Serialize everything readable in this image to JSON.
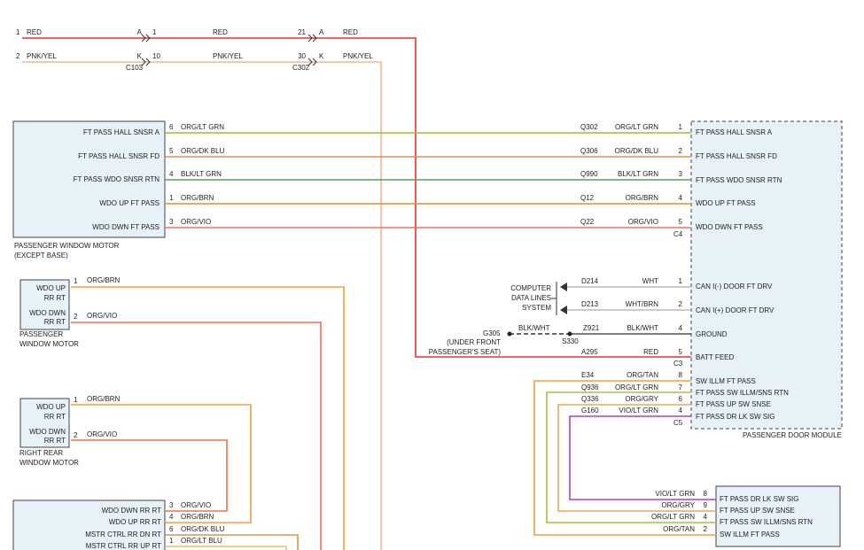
{
  "top": {
    "row1": [
      "1",
      "RED",
      "A",
      "1",
      "RED",
      "21",
      "A",
      "RED"
    ],
    "row2": [
      "2",
      "PNK/YEL",
      "K",
      "10",
      "PNK/YEL",
      "30",
      "K",
      "PNK/YEL"
    ],
    "connectors": [
      "C103",
      "C302"
    ]
  },
  "passenger_window_motor": {
    "terminals": [
      "FT PASS HALL SNSR A",
      "FT PASS HALL SNSR FD",
      "FT PASS WDO SNSR RTN",
      "WDO UP FT PASS",
      "WDO DWN FT PASS"
    ],
    "pins": [
      "6",
      "5",
      "4",
      "1",
      "3"
    ],
    "wire_colors": [
      "ORG/LT GRN",
      "ORG/DK BLU",
      "BLK/LT GRN",
      "ORG/BRN",
      "ORG/VIO"
    ],
    "caption": [
      "PASSENGER WINDOW MOTOR",
      "(EXCEPT BASE)"
    ]
  },
  "c4": {
    "circuits": [
      "Q302",
      "Q306",
      "Q990",
      "Q12",
      "Q22"
    ],
    "wire_colors": [
      "ORG/LT GRN",
      "ORG/DK BLU",
      "BLK/LT GRN",
      "ORG/BRN",
      "ORG/VIO"
    ],
    "pins": [
      "1",
      "2",
      "3",
      "4",
      "5"
    ],
    "label": "C4"
  },
  "door_module": {
    "terminals": [
      "FT PASS HALL SNSR A",
      "FT PASS HALL SNSR FD",
      "FT PASS WDO SNSR RTN",
      "WDO UP FT PASS",
      "WDO DWN FT PASS",
      "CAN I(-) DOOR FT DRV",
      "CAN I(+) DOOR FT DRV",
      "GROUND",
      "BATT FEED",
      "SW ILLM FT PASS",
      "FT PASS SW ILLM/SNS RTN",
      "FT PASS UP SW SNSE",
      "FT PASS DR LK SW SIG"
    ],
    "name": "PASSENGER DOOR MODULE"
  },
  "data_lines": {
    "system": [
      "COMPUTER",
      "DATA LINES",
      "SYSTEM"
    ],
    "circuits": [
      "D214",
      "D213"
    ],
    "wire_colors": [
      "WHT",
      "WHT/BRN"
    ],
    "pins": [
      "1",
      "2"
    ]
  },
  "ground": {
    "ground_point": "G305",
    "color_left": "BLK/WHT",
    "circuit": "Z921",
    "color_right": "BLK/WHT",
    "pin": "4",
    "splice": "S330",
    "location": [
      "(UNDER FRONT",
      "PASSENGER'S SEAT)"
    ]
  },
  "batt_feed": {
    "circuit": "A295",
    "color": "RED",
    "pin": "5",
    "connector": "C3"
  },
  "c5": {
    "circuits": [
      "E34",
      "Q936",
      "Q336",
      "G160"
    ],
    "wire_colors": [
      "ORG/TAN",
      "ORG/LT GRN",
      "ORG/GRY",
      "VIO/LT GRN"
    ],
    "pins": [
      "8",
      "7",
      "6",
      "4"
    ],
    "label": "C5"
  },
  "switch": {
    "terminals": [
      "FT PASS DR LK SW SIG",
      "FT PASS UP SW SNSE",
      "FT PASS SW ILLM/SNS RTN",
      "SW ILLM FT PASS"
    ],
    "wire_colors": [
      "VIO/LT GRN",
      "ORG/GRY",
      "ORG/LT GRN",
      "ORG/TAN"
    ],
    "pins": [
      "8",
      "9",
      "4",
      "2"
    ]
  },
  "rear_motor_left": {
    "terminals": [
      "WDO UP",
      "RR RT",
      "WDO DWN",
      "RR RT"
    ],
    "pins": [
      "1",
      "2"
    ],
    "wire_colors": [
      "ORG/BRN",
      "ORG/VIO"
    ],
    "caption": [
      "PASSENGER",
      "WINDOW MOTOR"
    ]
  },
  "rear_motor_right": {
    "terminals": [
      "WDO UP",
      "RR RT",
      "WDO DWN",
      "RR RT"
    ],
    "pins": [
      "1",
      "2"
    ],
    "wire_colors": [
      "ORG/BRN",
      "ORG/VIO"
    ],
    "caption": [
      "RIGHT REAR",
      "WINDOW MOTOR"
    ]
  },
  "bottom_module": {
    "terminals": [
      "WDO DWN RR RT",
      "WDO UP RR RT",
      "MSTR CTRL RR DN RT",
      "MSTR CTRL RR UP RT"
    ],
    "pins": [
      "3",
      "4",
      "6",
      "1"
    ],
    "wire_colors": [
      "ORG/VIO",
      "ORG/BRN",
      "ORG/DK BLU",
      "ORG/LT BLU"
    ]
  }
}
